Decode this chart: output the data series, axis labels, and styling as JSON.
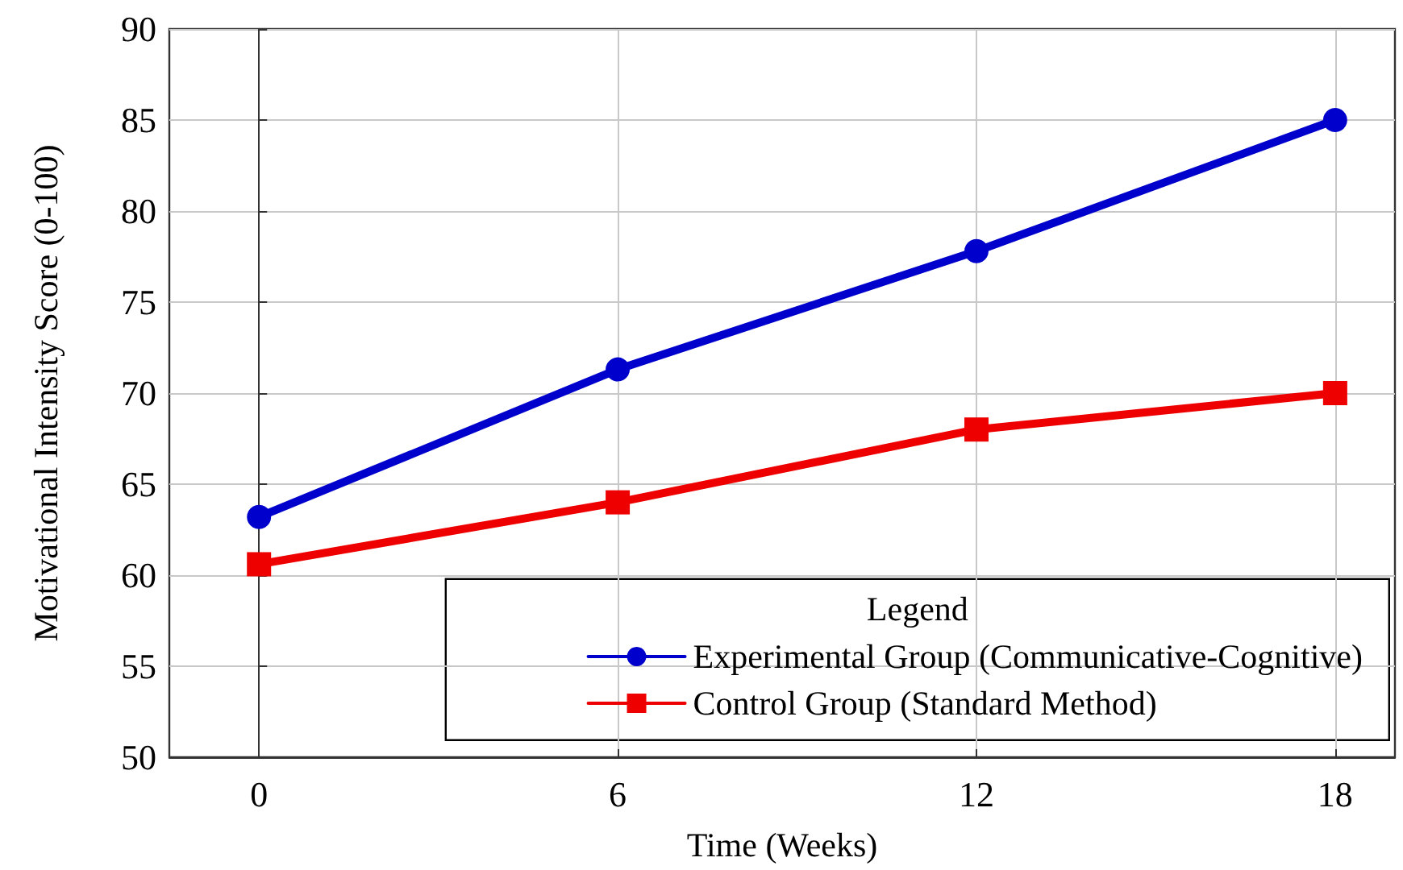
{
  "chart_data": {
    "type": "line",
    "xlabel": "Time (Weeks)",
    "ylabel": "Motivational Intensity Score (0-100)",
    "legend_title": "Legend",
    "x": [
      0,
      6,
      12,
      18
    ],
    "xlim": [
      -1.5,
      19
    ],
    "xticks": [
      0,
      6,
      12,
      18
    ],
    "ylim": [
      50,
      90
    ],
    "yticks": [
      50,
      55,
      60,
      65,
      70,
      75,
      80,
      85,
      90
    ],
    "grid": true,
    "legend": "bottom right",
    "line_style": "solid",
    "series": [
      {
        "name": "Experimental Group (Communicative-Cognitive)",
        "color": "#0000cc",
        "marker": "circle",
        "values": [
          63.2,
          71.3,
          77.8,
          85
        ]
      },
      {
        "name": "Control Group (Standard Method)",
        "color": "#ee0000",
        "marker": "square",
        "values": [
          60.6,
          64,
          68,
          70
        ]
      }
    ]
  }
}
